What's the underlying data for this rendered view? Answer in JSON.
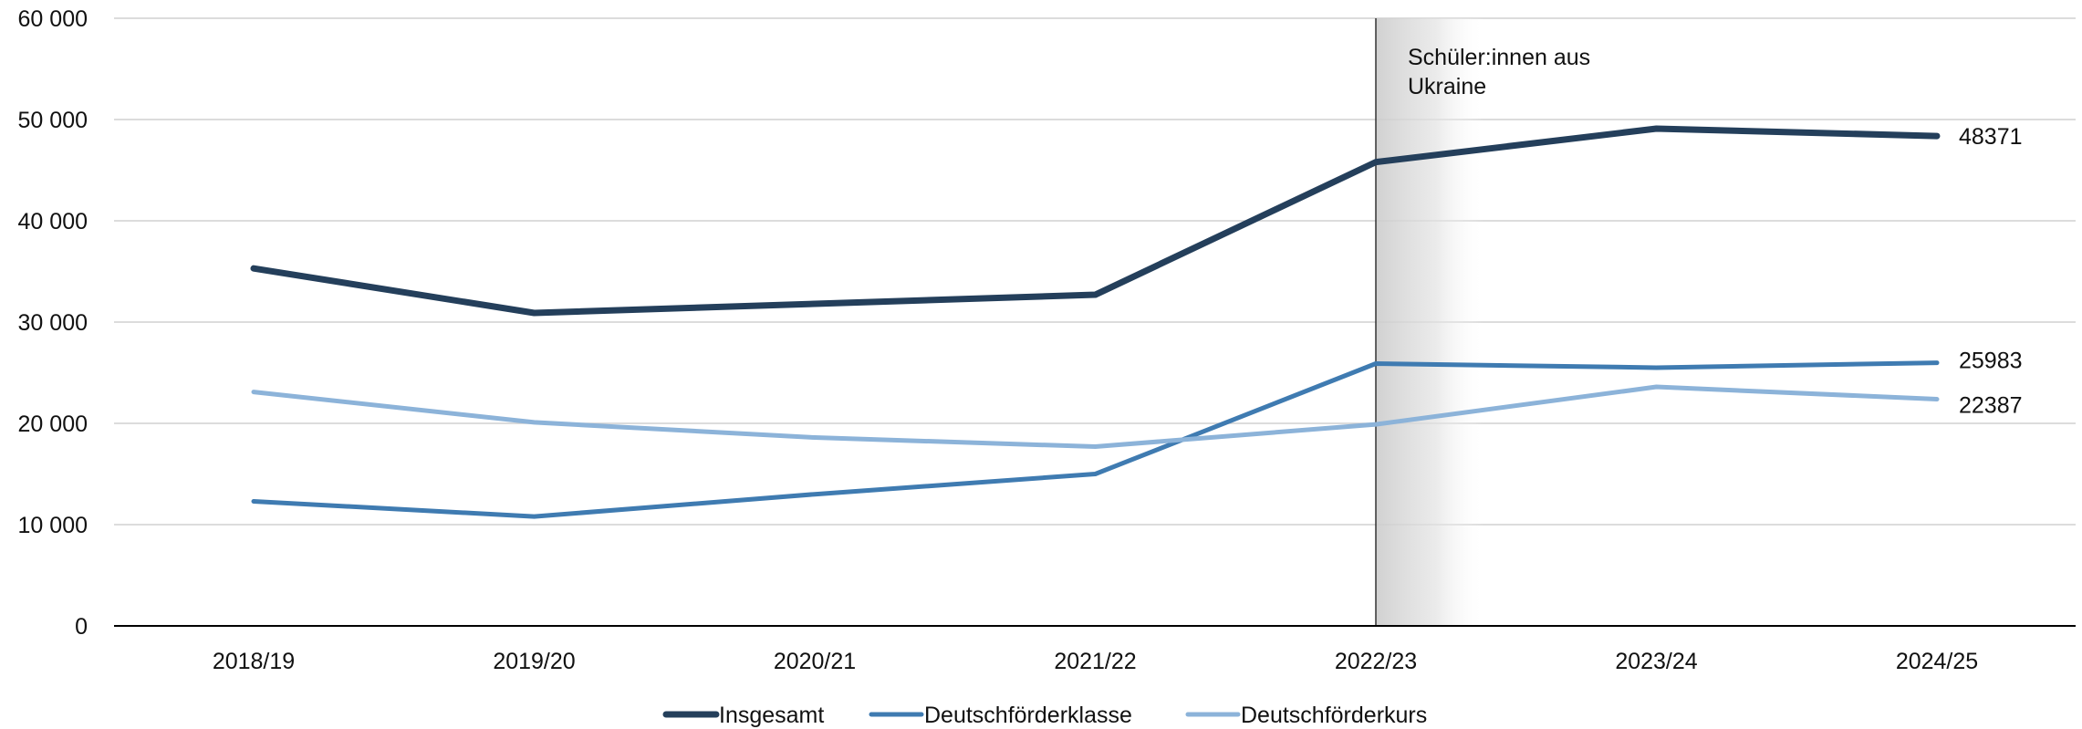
{
  "chart_data": {
    "type": "line",
    "categories": [
      "2018/19",
      "2019/20",
      "2020/21",
      "2021/22",
      "2022/23",
      "2023/24",
      "2024/25"
    ],
    "ylim": [
      0,
      60000
    ],
    "y_ticks": [
      {
        "value": 0,
        "label": "0"
      },
      {
        "value": 10000,
        "label": "10 000"
      },
      {
        "value": 20000,
        "label": "20 000"
      },
      {
        "value": 30000,
        "label": "30 000"
      },
      {
        "value": 40000,
        "label": "40 000"
      },
      {
        "value": 50000,
        "label": "50 000"
      },
      {
        "value": 60000,
        "label": "60 000"
      }
    ],
    "grid": "horizontal",
    "legend_position": "bottom",
    "series": [
      {
        "name": "Insgesamt",
        "color": "#243f5b",
        "values": [
          35300,
          30900,
          31800,
          32700,
          45800,
          49100,
          48371
        ],
        "end_label": "48371"
      },
      {
        "name": "Deutschförderklasse",
        "color": "#3f7bb1",
        "values": [
          12300,
          10800,
          13000,
          15000,
          25900,
          25500,
          25983
        ],
        "end_label": "25983"
      },
      {
        "name": "Deutschförderkurs",
        "color": "#8cb3d9",
        "values": [
          23100,
          20100,
          18600,
          17700,
          19900,
          23600,
          22387
        ],
        "end_label": "22387"
      }
    ],
    "annotation": {
      "category": "2022/23",
      "lines": [
        "Schüler:innen aus",
        "Ukraine"
      ]
    }
  }
}
